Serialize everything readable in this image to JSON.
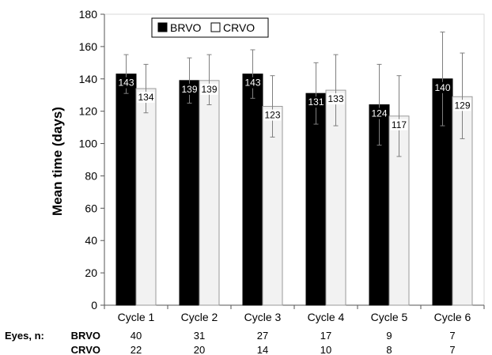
{
  "chart_data": {
    "type": "bar",
    "title": "",
    "xlabel": "",
    "ylabel": "Mean time (days)",
    "ylim": [
      0,
      180
    ],
    "yticks": [
      0,
      20,
      40,
      60,
      80,
      100,
      120,
      140,
      160,
      180
    ],
    "grid": false,
    "legend_position": "top-left",
    "categories": [
      "Cycle 1",
      "Cycle 2",
      "Cycle 3",
      "Cycle 4",
      "Cycle 5",
      "Cycle 6"
    ],
    "series": [
      {
        "name": "BRVO",
        "color": "#000000",
        "values": [
          143,
          139,
          143,
          131,
          124,
          140
        ],
        "error_upper": [
          155,
          153,
          158,
          150,
          149,
          169
        ],
        "error_lower": [
          131,
          125,
          128,
          112,
          99,
          111
        ]
      },
      {
        "name": "CRVO",
        "color": "#f2f2f2",
        "values": [
          134,
          139,
          123,
          133,
          117,
          129
        ],
        "error_upper": [
          149,
          155,
          142,
          155,
          142,
          156
        ],
        "error_lower": [
          119,
          124,
          104,
          111,
          92,
          103
        ]
      }
    ],
    "eyes_table": {
      "label": "Eyes, n:",
      "rows": [
        {
          "name": "BRVO",
          "values": [
            40,
            31,
            27,
            17,
            9,
            7
          ]
        },
        {
          "name": "CRVO",
          "values": [
            22,
            20,
            14,
            10,
            8,
            7
          ]
        }
      ]
    }
  }
}
